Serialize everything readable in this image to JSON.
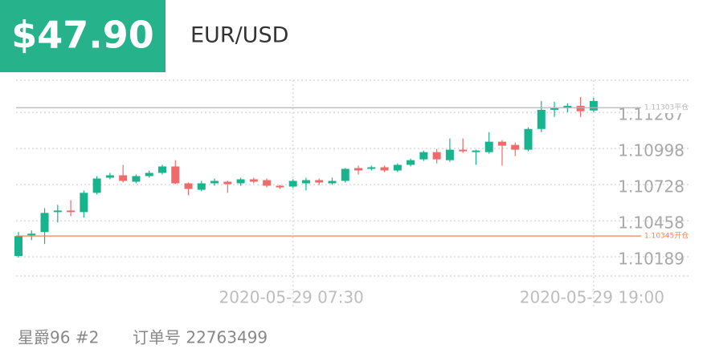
{
  "header": {
    "price": "$47.90",
    "symbol": "EUR/USD"
  },
  "footer": {
    "account": "星爵96 #2",
    "order": "订单号 22763499"
  },
  "chart_data": {
    "type": "candlestick",
    "categories": [
      null,
      null,
      null,
      null,
      null,
      null,
      null,
      null,
      null,
      null,
      null,
      null,
      null,
      null,
      null,
      null,
      null,
      null,
      null,
      null,
      null,
      "2020-05-29 07:30",
      null,
      null,
      null,
      null,
      null,
      null,
      null,
      null,
      null,
      null,
      null,
      null,
      null,
      null,
      null,
      null,
      null,
      null,
      null,
      null,
      null,
      null,
      "2020-05-29 19:00"
    ],
    "open": [
      1.10195,
      1.1035,
      1.10374,
      1.10523,
      1.10535,
      1.10523,
      1.10667,
      1.1078,
      1.10798,
      1.1075,
      1.10792,
      1.10816,
      1.10864,
      1.10738,
      1.1069,
      1.10738,
      1.1075,
      1.10738,
      1.10768,
      1.10762,
      1.1072,
      1.10714,
      1.10738,
      1.10762,
      1.10738,
      1.10756,
      1.10852,
      1.10846,
      1.10858,
      1.10834,
      1.10876,
      1.10917,
      1.10971,
      1.10911,
      1.10989,
      1.10971,
      1.10971,
      1.11049,
      1.11025,
      1.10989,
      1.11144,
      1.11287,
      1.11299,
      1.11317,
      1.11282
    ],
    "high": [
      1.10374,
      1.10386,
      1.10553,
      1.10577,
      1.10613,
      1.10684,
      1.10792,
      1.10816,
      1.10876,
      1.10804,
      1.10834,
      1.10876,
      1.10911,
      1.10744,
      1.10756,
      1.10774,
      1.10756,
      1.1078,
      1.1078,
      1.10774,
      1.10726,
      1.10768,
      1.1078,
      1.10774,
      1.1078,
      1.10852,
      1.1087,
      1.1087,
      1.1087,
      1.10887,
      1.10923,
      1.10983,
      1.10995,
      1.11073,
      1.11073,
      1.10989,
      1.1112,
      1.11061,
      1.11043,
      1.11156,
      1.11353,
      1.11347,
      1.11335,
      1.11383,
      1.11377
    ],
    "low": [
      1.10183,
      1.10314,
      1.10285,
      1.10446,
      1.10493,
      1.10482,
      1.10655,
      1.10768,
      1.10744,
      1.10738,
      1.1078,
      1.10804,
      1.10732,
      1.10649,
      1.10679,
      1.1072,
      1.10667,
      1.1072,
      1.10738,
      1.10708,
      1.10696,
      1.10702,
      1.10684,
      1.10726,
      1.10726,
      1.10744,
      1.10804,
      1.10834,
      1.10822,
      1.10822,
      1.10864,
      1.10905,
      1.10887,
      1.10899,
      1.10965,
      1.10876,
      1.10959,
      1.1087,
      1.10941,
      1.10977,
      1.1112,
      1.11234,
      1.11269,
      1.11234,
      1.11269
    ],
    "close": [
      1.10344,
      1.10362,
      1.10517,
      1.10535,
      1.10523,
      1.10667,
      1.10774,
      1.10798,
      1.10756,
      1.10792,
      1.10816,
      1.10864,
      1.10738,
      1.10696,
      1.10738,
      1.10756,
      1.10732,
      1.10768,
      1.1075,
      1.1072,
      1.10708,
      1.10756,
      1.10762,
      1.10744,
      1.10756,
      1.10846,
      1.10834,
      1.10858,
      1.10834,
      1.10876,
      1.10911,
      1.10971,
      1.10917,
      1.10989,
      1.10977,
      1.10983,
      1.11049,
      1.11019,
      1.10989,
      1.11144,
      1.11287,
      1.11299,
      1.11317,
      1.11276,
      1.11353
    ],
    "up_color": "#17b48e",
    "down_color": "#ef6a6a",
    "ylim": [
      1.10046,
      1.11508
    ],
    "yticks": [
      1.10189,
      1.10458,
      1.10728,
      1.10998,
      1.11267
    ],
    "grid": true,
    "lines": [
      {
        "value": 1.11303,
        "label": "1.11303平仓",
        "color": "#b5b5b5"
      },
      {
        "value": 1.10345,
        "label": "1.10345开仓",
        "color": "#f2844f"
      }
    ]
  }
}
